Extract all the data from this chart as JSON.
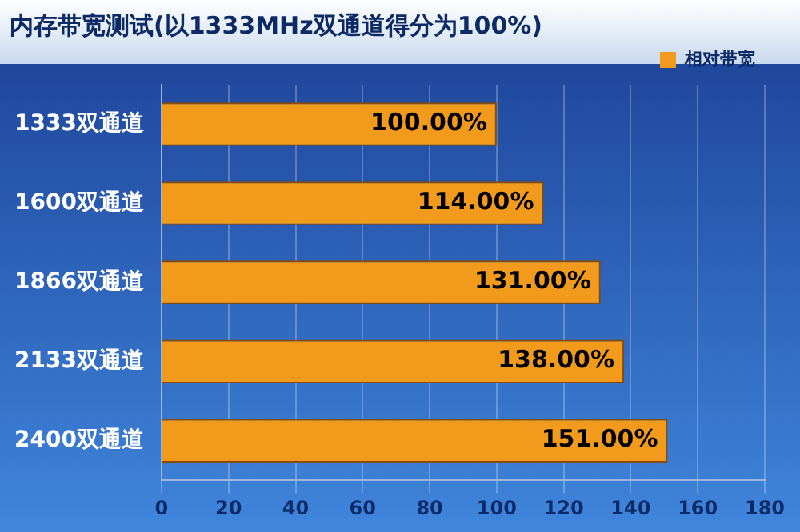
{
  "chart_data": {
    "type": "bar",
    "orientation": "horizontal",
    "title": "内存带宽测试(以1333MHz双通道得分为100%)",
    "categories": [
      "1333双通道",
      "1600双通道",
      "1866双通道",
      "2133双通道",
      "2400双通道"
    ],
    "series": [
      {
        "name": "相对带宽",
        "color": "#f29a1c",
        "values": [
          100,
          114,
          131,
          138,
          151
        ],
        "value_labels": [
          "100.00%",
          "114.00%",
          "131.00%",
          "138.00%",
          "151.00%"
        ]
      }
    ],
    "xlim": [
      0,
      180
    ],
    "xticks": [
      0,
      20,
      40,
      60,
      80,
      100,
      120,
      140,
      160,
      180
    ],
    "grid": "x",
    "legend": "top right"
  }
}
